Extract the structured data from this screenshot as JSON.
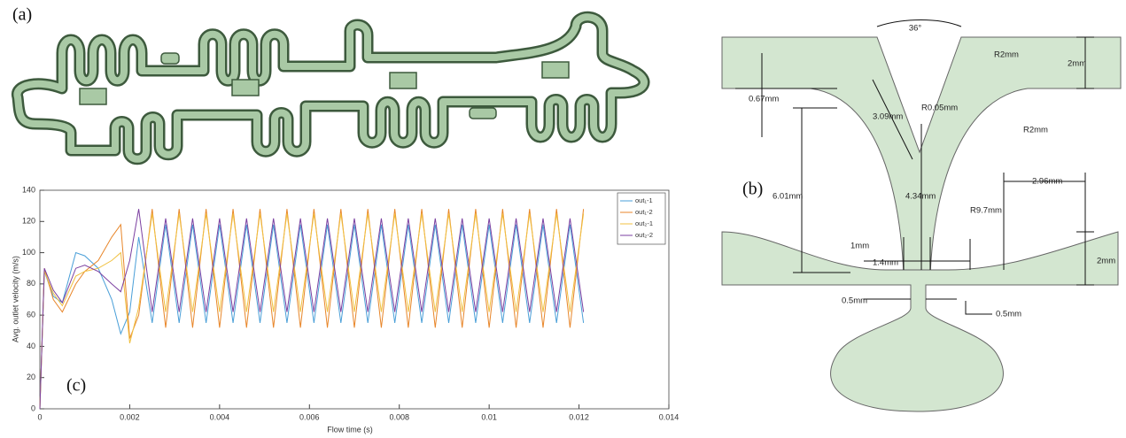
{
  "panel_a": {
    "label": "(a)"
  },
  "diagram": {
    "label": "(b)",
    "labels": [
      "36°",
      "R2mm",
      "2mm",
      "0.67mm",
      "3.09mm",
      "R0.05mm",
      "R2mm",
      "6.01mm",
      "4.34mm",
      "R9.7mm",
      "2.96mm",
      "1mm",
      "1.4mm",
      "2mm",
      "0.5mm",
      "0.5mm"
    ]
  },
  "chart_data": {
    "type": "line",
    "panel_label": "(c)",
    "xlabel": "Flow time (s)",
    "ylabel": "Avg. outlet velocity (m/s)",
    "x": [
      0,
      0.0001,
      0.0003,
      0.0005,
      0.0008,
      0.001,
      0.0013,
      0.0016,
      0.0018,
      0.002,
      0.0022,
      0.0025,
      0.0028,
      0.0031,
      0.0034,
      0.0037,
      0.004,
      0.0043,
      0.0046,
      0.0049,
      0.0052,
      0.0055,
      0.0058,
      0.0061,
      0.0064,
      0.0067,
      0.007,
      0.0073,
      0.0076,
      0.0079,
      0.0082,
      0.0085,
      0.0088,
      0.0091,
      0.0094,
      0.0097,
      0.01,
      0.0103,
      0.0106,
      0.0109,
      0.0112,
      0.0115,
      0.0118,
      0.0121
    ],
    "series": [
      {
        "name": "out₁-1",
        "color": "#4a9fd8",
        "values": [
          0,
          88,
          72,
          68,
          100,
          98,
          90,
          70,
          48,
          62,
          110,
          55,
          118,
          55,
          118,
          55,
          118,
          55,
          118,
          55,
          118,
          55,
          118,
          55,
          118,
          55,
          118,
          55,
          118,
          55,
          118,
          55,
          118,
          55,
          118,
          55,
          118,
          55,
          118,
          55,
          118,
          55,
          118,
          55
        ]
      },
      {
        "name": "out₁-2",
        "color": "#e8862a",
        "values": [
          0,
          90,
          70,
          62,
          80,
          88,
          95,
          110,
          118,
          45,
          60,
          128,
          52,
          128,
          52,
          128,
          52,
          128,
          52,
          128,
          52,
          128,
          52,
          128,
          52,
          128,
          52,
          128,
          52,
          128,
          52,
          128,
          52,
          128,
          52,
          128,
          52,
          128,
          52,
          128,
          52,
          128,
          52,
          128
        ]
      },
      {
        "name": "out₂-1",
        "color": "#f0c040",
        "values": [
          0,
          88,
          74,
          66,
          85,
          88,
          90,
          95,
          100,
          42,
          65,
          125,
          62,
          125,
          62,
          125,
          62,
          125,
          62,
          125,
          62,
          125,
          62,
          125,
          62,
          125,
          62,
          125,
          62,
          125,
          62,
          125,
          62,
          125,
          62,
          125,
          62,
          125,
          62,
          125,
          62,
          125,
          62,
          125
        ]
      },
      {
        "name": "out₂-2",
        "color": "#7b3fa0",
        "values": [
          0,
          90,
          76,
          68,
          90,
          92,
          88,
          80,
          75,
          95,
          128,
          62,
          122,
          62,
          122,
          62,
          122,
          62,
          122,
          62,
          122,
          62,
          122,
          62,
          122,
          62,
          122,
          62,
          122,
          62,
          122,
          62,
          122,
          62,
          122,
          62,
          122,
          62,
          122,
          62,
          122,
          62,
          122,
          62
        ]
      }
    ],
    "xlim": [
      0,
      0.014
    ],
    "xticks": [
      0,
      0.002,
      0.004,
      0.006,
      0.008,
      0.01,
      0.012,
      0.014
    ],
    "ylim": [
      0,
      140
    ],
    "yticks": [
      0,
      20,
      40,
      60,
      80,
      100,
      120,
      140
    ],
    "grid": false,
    "legend": "upper right"
  }
}
